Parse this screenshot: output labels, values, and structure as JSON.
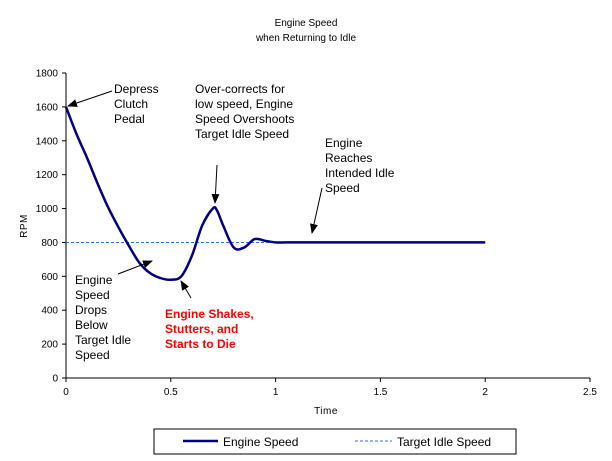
{
  "chart_data": {
    "type": "line",
    "title": "Engine Speed",
    "subtitle": "when Returning to Idle",
    "xlabel": "Time",
    "ylabel": "RPM",
    "xlim": [
      0,
      2.5
    ],
    "ylim": [
      0,
      1800
    ],
    "x_ticks": [
      "0",
      "0.5",
      "1",
      "1.5",
      "2",
      "2.5"
    ],
    "y_ticks": [
      "0",
      "200",
      "400",
      "600",
      "800",
      "1000",
      "1200",
      "1400",
      "1600",
      "1800"
    ],
    "grid": false,
    "legend_position": "bottom",
    "series": [
      {
        "name": "Engine Speed",
        "color": "#000080",
        "style": "solid",
        "x": [
          0,
          0.05,
          0.1,
          0.15,
          0.2,
          0.25,
          0.3,
          0.35,
          0.4,
          0.45,
          0.5,
          0.55,
          0.6,
          0.65,
          0.7,
          0.72,
          0.75,
          0.8,
          0.85,
          0.9,
          0.95,
          1.0,
          1.05,
          1.1,
          1.2,
          1.5,
          2.0
        ],
        "y": [
          1600,
          1440,
          1300,
          1150,
          1010,
          890,
          780,
          680,
          620,
          590,
          580,
          600,
          720,
          900,
          1000,
          990,
          900,
          770,
          770,
          820,
          810,
          800,
          800,
          800,
          800,
          800,
          800
        ]
      },
      {
        "name": "Target Idle Speed",
        "color": "#3366ff",
        "style": "dashed",
        "x": [
          0,
          2.0
        ],
        "y": [
          800,
          800
        ]
      }
    ],
    "annotations": [
      {
        "text": [
          "Depress",
          "Clutch",
          "Pedal"
        ],
        "color": "#000000"
      },
      {
        "text": [
          "Over-corrects for",
          "low speed, Engine",
          "Speed Overshoots",
          "Target Idle Speed"
        ],
        "color": "#000000"
      },
      {
        "text": [
          "Engine",
          "Reaches",
          "Intended Idle",
          "Speed"
        ],
        "color": "#000000"
      },
      {
        "text": [
          "Engine",
          "Speed",
          "Drops",
          "Below",
          "Target Idle",
          "Speed"
        ],
        "color": "#000000"
      },
      {
        "text": [
          "Engine Shakes,",
          "Stutters, and",
          "Starts to Die"
        ],
        "color": "#ff0000"
      }
    ]
  }
}
